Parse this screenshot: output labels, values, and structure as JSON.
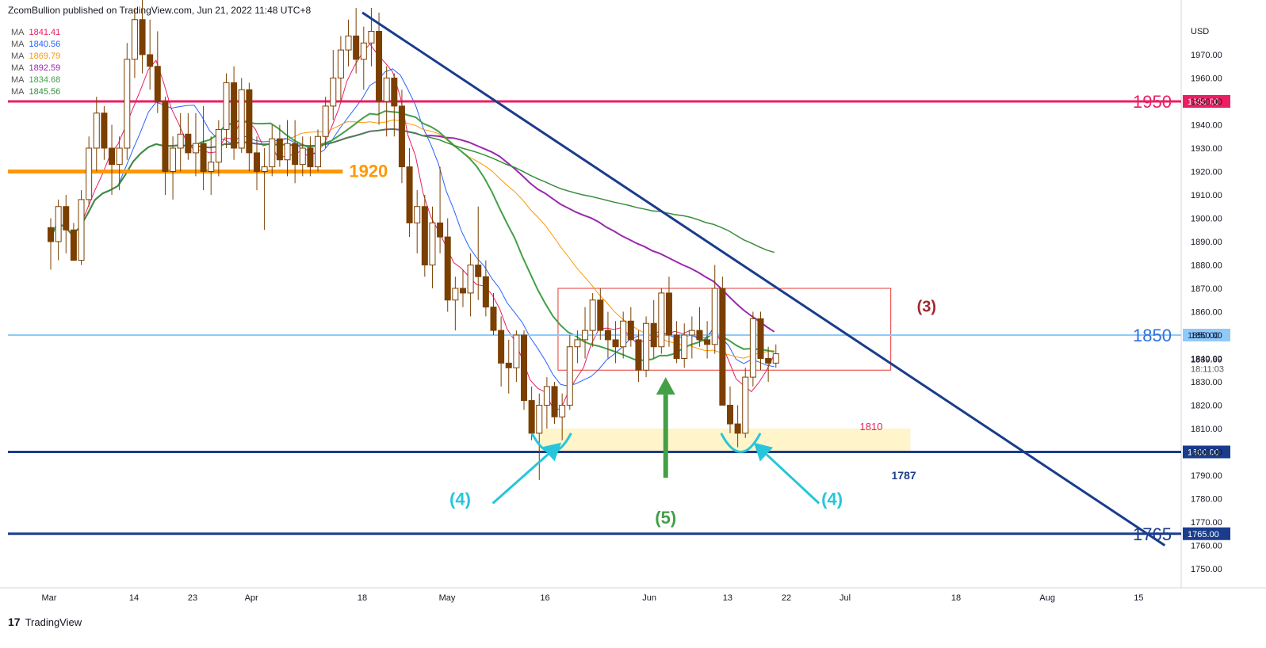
{
  "header": {
    "publisher": "ZcomBullion published on TradingView.com, Jun 21, 2022 11:48 UTC+8"
  },
  "footer": {
    "brand": "TradingView",
    "logo": "17"
  },
  "ma_legend": [
    {
      "label": "MA",
      "value": "1841.41",
      "color": "#e91e63"
    },
    {
      "label": "MA",
      "value": "1840.56",
      "color": "#2962ff"
    },
    {
      "label": "MA",
      "value": "1869.79",
      "color": "#ff9800"
    },
    {
      "label": "MA",
      "value": "1892.59",
      "color": "#9c27b0"
    },
    {
      "label": "MA",
      "value": "1834.68",
      "color": "#43a047"
    },
    {
      "label": "MA",
      "value": "1845.56",
      "color": "#388e3c"
    }
  ],
  "chart_data": {
    "type": "candlestick",
    "currency": "USD",
    "ylim": [
      1740,
      1985
    ],
    "y_ticks": [
      1750,
      1760,
      1770,
      1780,
      1790,
      1800,
      1810,
      1820,
      1830,
      1840,
      1850,
      1860,
      1870,
      1880,
      1890,
      1900,
      1910,
      1920,
      1930,
      1940,
      1950,
      1960,
      1970
    ],
    "x_ticks": [
      {
        "label": "Mar",
        "day": 0
      },
      {
        "label": "14",
        "day": 13
      },
      {
        "label": "23",
        "day": 22
      },
      {
        "label": "Apr",
        "day": 31
      },
      {
        "label": "18",
        "day": 48
      },
      {
        "label": "May",
        "day": 61
      },
      {
        "label": "16",
        "day": 76
      },
      {
        "label": "Jun",
        "day": 92
      },
      {
        "label": "13",
        "day": 104
      },
      {
        "label": "22",
        "day": 113
      },
      {
        "label": "Jul",
        "day": 122
      },
      {
        "label": "18",
        "day": 139
      },
      {
        "label": "Aug",
        "day": 153
      },
      {
        "label": "15",
        "day": 167
      }
    ],
    "candles": [
      [
        1896,
        1900,
        1878,
        1890
      ],
      [
        1890,
        1908,
        1882,
        1905
      ],
      [
        1905,
        1910,
        1885,
        1895
      ],
      [
        1895,
        1898,
        1882,
        1882
      ],
      [
        1882,
        1912,
        1880,
        1908
      ],
      [
        1908,
        1935,
        1905,
        1930
      ],
      [
        1930,
        1952,
        1920,
        1945
      ],
      [
        1945,
        1948,
        1925,
        1930
      ],
      [
        1930,
        1940,
        1910,
        1923
      ],
      [
        1923,
        1935,
        1912,
        1930
      ],
      [
        1930,
        1975,
        1925,
        1968
      ],
      [
        1968,
        1990,
        1960,
        1985
      ],
      [
        1985,
        1995,
        1962,
        1970
      ],
      [
        1970,
        1985,
        1955,
        1965
      ],
      [
        1965,
        1980,
        1945,
        1950
      ],
      [
        1950,
        1952,
        1910,
        1920
      ],
      [
        1920,
        1935,
        1908,
        1930
      ],
      [
        1930,
        1945,
        1920,
        1936
      ],
      [
        1936,
        1945,
        1925,
        1928
      ],
      [
        1928,
        1945,
        1918,
        1932
      ],
      [
        1932,
        1948,
        1912,
        1920
      ],
      [
        1920,
        1935,
        1910,
        1924
      ],
      [
        1924,
        1942,
        1918,
        1938
      ],
      [
        1938,
        1962,
        1930,
        1958
      ],
      [
        1958,
        1965,
        1925,
        1930
      ],
      [
        1930,
        1960,
        1928,
        1955
      ],
      [
        1955,
        1958,
        1920,
        1928
      ],
      [
        1928,
        1935,
        1912,
        1920
      ],
      [
        1920,
        1930,
        1895,
        1922
      ],
      [
        1922,
        1940,
        1918,
        1934
      ],
      [
        1934,
        1940,
        1922,
        1925
      ],
      [
        1925,
        1942,
        1918,
        1932
      ],
      [
        1932,
        1942,
        1915,
        1923
      ],
      [
        1923,
        1935,
        1918,
        1930
      ],
      [
        1930,
        1935,
        1918,
        1922
      ],
      [
        1922,
        1938,
        1920,
        1935
      ],
      [
        1935,
        1952,
        1930,
        1948
      ],
      [
        1948,
        1972,
        1942,
        1960
      ],
      [
        1960,
        1978,
        1950,
        1972
      ],
      [
        1972,
        1985,
        1965,
        1978
      ],
      [
        1978,
        1990,
        1962,
        1968
      ],
      [
        1968,
        1982,
        1955,
        1975
      ],
      [
        1975,
        1990,
        1965,
        1980
      ],
      [
        1980,
        1988,
        1940,
        1950
      ],
      [
        1950,
        1965,
        1935,
        1960
      ],
      [
        1960,
        1962,
        1935,
        1948
      ],
      [
        1948,
        1955,
        1915,
        1922
      ],
      [
        1922,
        1930,
        1892,
        1898
      ],
      [
        1898,
        1912,
        1885,
        1905
      ],
      [
        1905,
        1910,
        1875,
        1880
      ],
      [
        1880,
        1905,
        1870,
        1898
      ],
      [
        1898,
        1922,
        1885,
        1892
      ],
      [
        1892,
        1900,
        1860,
        1865
      ],
      [
        1865,
        1875,
        1852,
        1870
      ],
      [
        1870,
        1878,
        1862,
        1868
      ],
      [
        1868,
        1885,
        1858,
        1880
      ],
      [
        1880,
        1905,
        1865,
        1875
      ],
      [
        1875,
        1882,
        1858,
        1862
      ],
      [
        1862,
        1868,
        1850,
        1852
      ],
      [
        1852,
        1858,
        1828,
        1838
      ],
      [
        1838,
        1848,
        1825,
        1836
      ],
      [
        1836,
        1852,
        1830,
        1850
      ],
      [
        1850,
        1852,
        1818,
        1822
      ],
      [
        1822,
        1828,
        1805,
        1808
      ],
      [
        1808,
        1825,
        1788,
        1820
      ],
      [
        1820,
        1832,
        1810,
        1828
      ],
      [
        1828,
        1830,
        1812,
        1815
      ],
      [
        1815,
        1825,
        1805,
        1820
      ],
      [
        1820,
        1850,
        1818,
        1845
      ],
      [
        1845,
        1852,
        1838,
        1848
      ],
      [
        1848,
        1862,
        1840,
        1852
      ],
      [
        1852,
        1868,
        1845,
        1865
      ],
      [
        1865,
        1870,
        1848,
        1852
      ],
      [
        1852,
        1860,
        1840,
        1848
      ],
      [
        1848,
        1856,
        1838,
        1845
      ],
      [
        1845,
        1860,
        1840,
        1856
      ],
      [
        1856,
        1862,
        1845,
        1848
      ],
      [
        1848,
        1852,
        1830,
        1835
      ],
      [
        1835,
        1858,
        1832,
        1855
      ],
      [
        1855,
        1865,
        1840,
        1845
      ],
      [
        1845,
        1870,
        1842,
        1868
      ],
      [
        1868,
        1875,
        1845,
        1850
      ],
      [
        1850,
        1856,
        1838,
        1840
      ],
      [
        1840,
        1855,
        1836,
        1850
      ],
      [
        1850,
        1858,
        1840,
        1852
      ],
      [
        1852,
        1862,
        1845,
        1848
      ],
      [
        1848,
        1856,
        1840,
        1846
      ],
      [
        1846,
        1880,
        1842,
        1870
      ],
      [
        1870,
        1875,
        1822,
        1820
      ],
      [
        1820,
        1828,
        1808,
        1812
      ],
      [
        1812,
        1820,
        1802,
        1808
      ],
      [
        1808,
        1836,
        1806,
        1832
      ],
      [
        1832,
        1860,
        1828,
        1857
      ],
      [
        1857,
        1860,
        1835,
        1840
      ],
      [
        1840,
        1845,
        1830,
        1838
      ],
      [
        1838,
        1846,
        1836,
        1842
      ]
    ],
    "levels": [
      {
        "label": "1950",
        "price_label": "1950.00",
        "price": 1950,
        "color": "#e91e63"
      },
      {
        "label": "1850",
        "price_label": "1850.00",
        "price": 1850,
        "color": "#90caf9"
      },
      {
        "label": "",
        "price_label": "1800.00",
        "price": 1800,
        "color": "#1a3c8c"
      },
      {
        "label": "1765",
        "price_label": "1765.00",
        "price": 1765,
        "color": "#1a3c8c"
      },
      {
        "label": "1920",
        "price_label": "",
        "price": 1920,
        "color": "#ff9800"
      }
    ],
    "current_price": "1839.69",
    "countdown": "18:11:03",
    "zones": [
      {
        "label": "1810",
        "price_low": 1800,
        "price_high": 1810,
        "color": "#fff3c4"
      },
      {
        "label": "(3)",
        "price_low": 1835,
        "price_high": 1870,
        "color": "#e53935"
      }
    ],
    "annotations": [
      {
        "text": "(4)",
        "color": "#26c6da"
      },
      {
        "text": "(5)",
        "color": "#43a047"
      },
      {
        "text": "(4)",
        "color": "#26c6da"
      },
      {
        "text": "1787",
        "color": "#1a3c8c"
      }
    ],
    "trendline": {
      "from": {
        "day": 48,
        "price": 1988
      },
      "to": {
        "day": 171,
        "price": 1760
      },
      "color": "#1a3c8c"
    }
  }
}
